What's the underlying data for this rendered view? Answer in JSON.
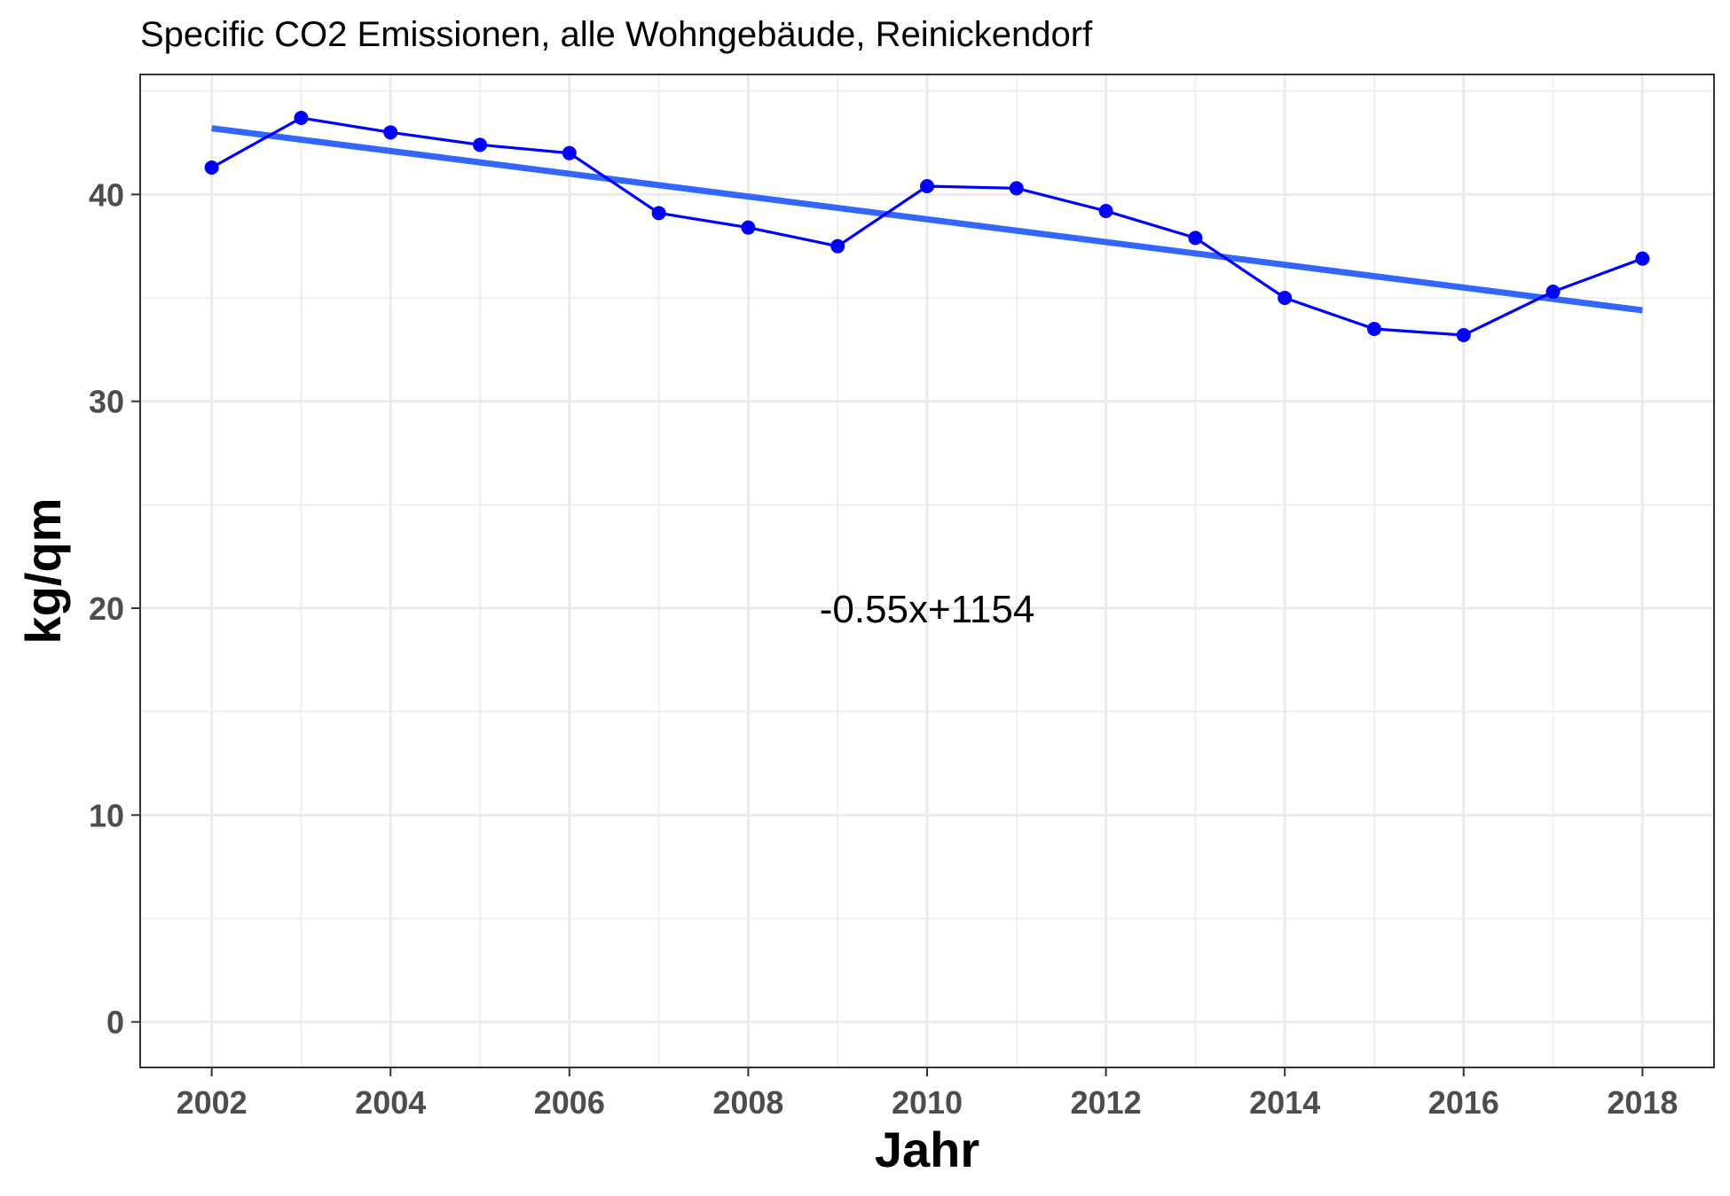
{
  "chart_data": {
    "type": "line",
    "title": "Specific CO2 Emissionen, alle Wohngebäude, Reinickendorf",
    "xlabel": "Jahr",
    "ylabel": "kg/qm",
    "xlim": [
      2001.2,
      2018.8
    ],
    "ylim": [
      -2.2,
      45.8
    ],
    "x_ticks": [
      2002,
      2004,
      2006,
      2008,
      2010,
      2012,
      2014,
      2016,
      2018
    ],
    "y_ticks": [
      0,
      10,
      20,
      30,
      40
    ],
    "grid": true,
    "series": [
      {
        "type": "line+points",
        "color": "#0000ff",
        "x": [
          2002,
          2003,
          2004,
          2005,
          2006,
          2007,
          2008,
          2009,
          2010,
          2011,
          2012,
          2013,
          2014,
          2015,
          2016,
          2017,
          2018
        ],
        "values": [
          41.3,
          43.7,
          43.0,
          42.4,
          42.0,
          39.1,
          38.4,
          37.5,
          40.4,
          40.3,
          39.2,
          37.9,
          35.0,
          33.5,
          33.2,
          35.3,
          36.9
        ]
      },
      {
        "type": "trend",
        "color": "#3366ff",
        "x": [
          2002,
          2018
        ],
        "values": [
          43.2,
          34.4
        ]
      }
    ],
    "annotation": {
      "text": "-0.55x+1154",
      "x": 2010,
      "y": 20
    }
  }
}
